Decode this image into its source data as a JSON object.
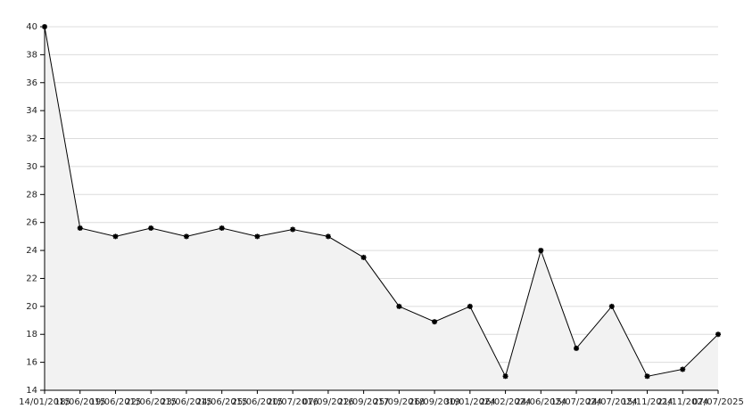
{
  "chart_data": {
    "type": "line",
    "categories": [
      "14/01/2015",
      "18/06/2015",
      "19/06/2015",
      "22/06/2015",
      "23/06/2015",
      "24/06/2015",
      "25/06/2015",
      "20/07/2016",
      "07/09/2016",
      "22/09/2017",
      "25/09/2018",
      "26/09/2019",
      "30/01/2024",
      "26/02/2024",
      "24/06/2024",
      "15/07/2024",
      "24/07/2024",
      "15/11/2024",
      "21/11/2024",
      "07/07/2025"
    ],
    "values": [
      40,
      25.6,
      25,
      25.6,
      25,
      25.6,
      25,
      25.5,
      25,
      23.5,
      20,
      18.9,
      20,
      15,
      24,
      17,
      20,
      15,
      15.5,
      18
    ],
    "color": "#000000",
    "area_color": "#f2f2f2",
    "ylim": [
      14,
      40
    ],
    "yticks": [
      14,
      16,
      18,
      20,
      22,
      24,
      26,
      28,
      30,
      32,
      34,
      36,
      38,
      40
    ],
    "grid": true
  }
}
